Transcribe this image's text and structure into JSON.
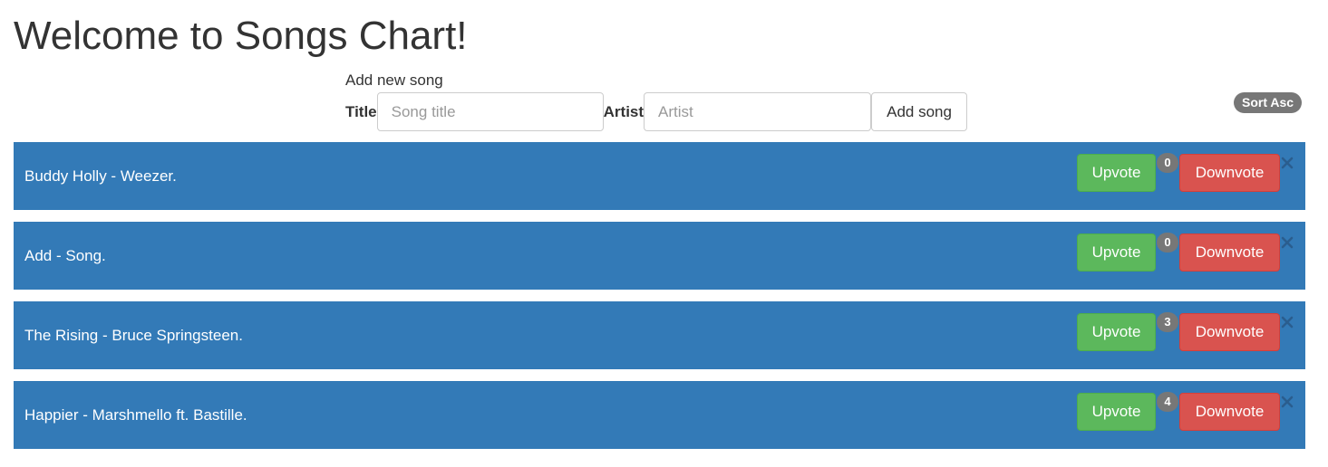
{
  "page": {
    "title": "Welcome to Songs Chart!"
  },
  "form": {
    "heading": "Add new song",
    "title_label": "Title",
    "title_placeholder": "Song title",
    "artist_label": "Artist",
    "artist_placeholder": "Artist",
    "add_button": "Add song"
  },
  "sort": {
    "label": "Sort Asc"
  },
  "songs": [
    {
      "text": "Buddy Holly - Weezer.",
      "votes": "0",
      "upvote": "Upvote",
      "downvote": "Downvote"
    },
    {
      "text": "Add - Song.",
      "votes": "0",
      "upvote": "Upvote",
      "downvote": "Downvote"
    },
    {
      "text": "The Rising - Bruce Springsteen.",
      "votes": "3",
      "upvote": "Upvote",
      "downvote": "Downvote"
    },
    {
      "text": "Happier - Marshmello ft. Bastille.",
      "votes": "4",
      "upvote": "Upvote",
      "downvote": "Downvote"
    }
  ],
  "icons": {
    "remove": "close-icon"
  },
  "colors": {
    "row_background": "#337ab7",
    "upvote": "#5cb85c",
    "downvote": "#d9534f",
    "badge": "#777777"
  }
}
